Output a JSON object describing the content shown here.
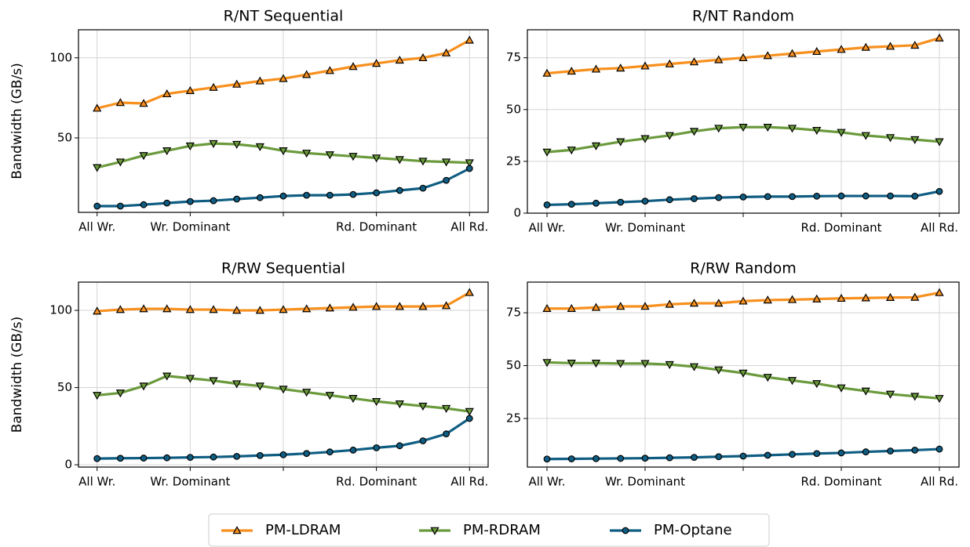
{
  "chart_data": [
    {
      "type": "line",
      "title": "R/NT Sequential",
      "ylabel": "Bandwidth (GB/s)",
      "categories": [
        "All Wr.",
        null,
        null,
        null,
        "Wr. Dominant",
        null,
        null,
        null,
        null,
        null,
        null,
        null,
        "Rd. Dominant",
        null,
        null,
        null,
        "All Rd."
      ],
      "ylim": [
        3.5,
        117.5
      ],
      "yticks": [
        50,
        100
      ],
      "grid": true,
      "series": [
        {
          "name": "PM-LDRAM",
          "color": "#f7901e",
          "marker": "triangle-up",
          "values": [
            68.5,
            72,
            71.5,
            77.5,
            79.5,
            81.5,
            83.5,
            85.5,
            87,
            89.5,
            92,
            94.5,
            96.5,
            98.5,
            100,
            103,
            111
          ]
        },
        {
          "name": "PM-RDRAM",
          "color": "#6b9a3c",
          "marker": "triangle-down",
          "values": [
            31.5,
            35,
            39,
            42,
            45,
            46.5,
            46,
            44.5,
            42,
            40.5,
            39.5,
            38.5,
            37.5,
            36.5,
            35.5,
            35,
            34.5
          ]
        },
        {
          "name": "PM-Optane",
          "color": "#0f5d82",
          "marker": "circle",
          "values": [
            7.4,
            7.4,
            8.3,
            9.3,
            10.3,
            10.8,
            11.8,
            12.7,
            13.7,
            14.2,
            14.2,
            14.7,
            15.7,
            17.2,
            18.6,
            23.5,
            30.9
          ]
        }
      ]
    },
    {
      "type": "line",
      "title": "R/NT Random",
      "categories": [
        "All Wr.",
        null,
        null,
        null,
        "Wr. Dominant",
        null,
        null,
        null,
        null,
        null,
        null,
        null,
        "Rd. Dominant",
        null,
        null,
        null,
        "All Rd."
      ],
      "ylim": [
        0,
        88.5
      ],
      "yticks": [
        0,
        25,
        50,
        75
      ],
      "grid": true,
      "series": [
        {
          "name": "PM-LDRAM",
          "color": "#f7901e",
          "marker": "triangle-up",
          "values": [
            67.5,
            68.5,
            69.5,
            70,
            71,
            72,
            73,
            74,
            75,
            76,
            77,
            78,
            79,
            80,
            80.5,
            81,
            84.5
          ]
        },
        {
          "name": "PM-RDRAM",
          "color": "#6b9a3c",
          "marker": "triangle-down",
          "values": [
            29.5,
            30.5,
            32.5,
            34.5,
            36,
            37.5,
            39.5,
            41,
            41.5,
            41.5,
            41,
            40,
            39,
            37.5,
            36.5,
            35.5,
            34.5
          ]
        },
        {
          "name": "PM-Optane",
          "color": "#0f5d82",
          "marker": "circle",
          "values": [
            4,
            4.3,
            4.8,
            5.3,
            5.8,
            6.5,
            7,
            7.5,
            7.8,
            8,
            8,
            8.2,
            8.3,
            8.3,
            8.3,
            8.2,
            10.5
          ]
        }
      ]
    },
    {
      "type": "line",
      "title": "R/RW Sequential",
      "ylabel": "Bandwidth (GB/s)",
      "categories": [
        "All Wr.",
        null,
        null,
        null,
        "Wr. Dominant",
        null,
        null,
        null,
        null,
        null,
        null,
        null,
        "Rd. Dominant",
        null,
        null,
        null,
        "All Rd."
      ],
      "ylim": [
        -1.5,
        118.3
      ],
      "yticks": [
        0,
        50,
        100
      ],
      "grid": true,
      "series": [
        {
          "name": "PM-LDRAM",
          "color": "#f7901e",
          "marker": "triangle-up",
          "values": [
            99.5,
            100.5,
            101,
            101,
            100.5,
            100.5,
            100,
            100,
            100.5,
            101,
            101.5,
            102,
            102.5,
            102.5,
            102.5,
            103,
            111.5
          ]
        },
        {
          "name": "PM-RDRAM",
          "color": "#6b9a3c",
          "marker": "triangle-down",
          "values": [
            45,
            46.5,
            51,
            57.5,
            56,
            54.5,
            52.5,
            51,
            49,
            47,
            45,
            43,
            41,
            39.5,
            38,
            36.5,
            34.5
          ]
        },
        {
          "name": "PM-Optane",
          "color": "#0f5d82",
          "marker": "circle",
          "values": [
            4,
            4.2,
            4.3,
            4.5,
            4.8,
            5,
            5.4,
            6,
            6.5,
            7.3,
            8.3,
            9.5,
            11,
            12.3,
            15.5,
            20,
            30
          ]
        }
      ]
    },
    {
      "type": "line",
      "title": "R/RW Random",
      "categories": [
        "All Wr.",
        null,
        null,
        null,
        "Wr. Dominant",
        null,
        null,
        null,
        null,
        null,
        null,
        null,
        "Rd. Dominant",
        null,
        null,
        null,
        "All Rd."
      ],
      "ylim": [
        2,
        89.5
      ],
      "yticks": [
        25,
        50,
        75
      ],
      "grid": true,
      "series": [
        {
          "name": "PM-LDRAM",
          "color": "#f7901e",
          "marker": "triangle-up",
          "values": [
            77,
            77,
            77.5,
            78,
            78,
            79,
            79.5,
            79.5,
            80.5,
            81,
            81.2,
            81.5,
            81.8,
            82,
            82.2,
            82.3,
            84.5
          ]
        },
        {
          "name": "PM-RDRAM",
          "color": "#6b9a3c",
          "marker": "triangle-down",
          "values": [
            51.5,
            51.2,
            51.2,
            51,
            51,
            50.5,
            49.5,
            48,
            46.5,
            44.5,
            43,
            41.5,
            39.5,
            38,
            36.5,
            35.5,
            34.5
          ]
        },
        {
          "name": "PM-Optane",
          "color": "#0f5d82",
          "marker": "circle",
          "values": [
            5.8,
            5.9,
            6,
            6.1,
            6.2,
            6.4,
            6.6,
            6.9,
            7.2,
            7.6,
            8,
            8.4,
            8.7,
            9.2,
            9.6,
            10,
            10.5
          ]
        }
      ]
    }
  ]
}
